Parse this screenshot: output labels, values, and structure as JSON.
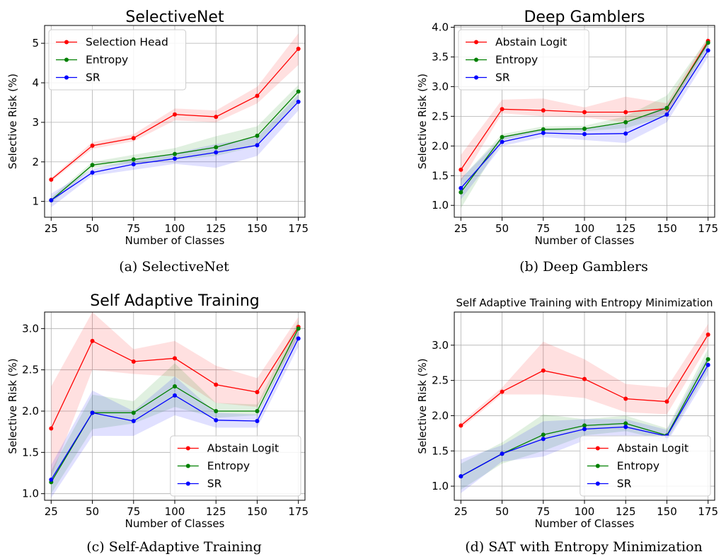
{
  "colors": {
    "red": "#ff0000",
    "green": "#008000",
    "blue": "#0000ff"
  },
  "chart_data": [
    {
      "type": "line",
      "title": "SelectiveNet",
      "caption": "(a) SelectiveNet",
      "xlabel": "Number of Classes",
      "ylabel": "Selective Risk (%)",
      "x": [
        25,
        50,
        75,
        100,
        125,
        150,
        175
      ],
      "xticks": [
        "25",
        "50",
        "75",
        "100",
        "125",
        "150",
        "175"
      ],
      "ylim": [
        0.6,
        5.45
      ],
      "yticks": [
        1,
        2,
        3,
        4,
        5
      ],
      "ytick_labels": [
        "1",
        "2",
        "3",
        "4",
        "5"
      ],
      "grid": true,
      "legend": "upper-left",
      "series": [
        {
          "name": "Selection Head",
          "color": "#ff0000",
          "values": [
            1.55,
            2.41,
            2.6,
            3.2,
            3.14,
            3.67,
            4.86
          ],
          "band_low": [
            1.5,
            2.33,
            2.52,
            3.05,
            3.0,
            3.48,
            4.45
          ],
          "band_high": [
            1.6,
            2.5,
            2.7,
            3.35,
            3.3,
            3.9,
            5.25
          ]
        },
        {
          "name": "Entropy",
          "color": "#008000",
          "values": [
            1.03,
            1.92,
            2.06,
            2.2,
            2.37,
            2.66,
            3.78
          ],
          "band_low": [
            0.95,
            1.85,
            1.96,
            2.05,
            2.15,
            2.4,
            3.55
          ],
          "band_high": [
            1.1,
            2.0,
            2.18,
            2.35,
            2.65,
            2.9,
            3.95
          ]
        },
        {
          "name": "SR",
          "color": "#0000ff",
          "values": [
            1.03,
            1.73,
            1.94,
            2.08,
            2.24,
            2.42,
            3.52
          ],
          "band_low": [
            0.85,
            1.65,
            1.8,
            1.95,
            1.85,
            2.15,
            3.3
          ],
          "band_high": [
            1.2,
            1.82,
            2.05,
            2.22,
            2.45,
            2.62,
            3.7
          ]
        }
      ]
    },
    {
      "type": "line",
      "title": "Deep Gamblers",
      "caption": "(b) Deep Gamblers",
      "xlabel": "Number of Classes",
      "ylabel": "Selective Risk (%)",
      "x": [
        25,
        50,
        75,
        100,
        125,
        150,
        175
      ],
      "xticks": [
        "25",
        "50",
        "75",
        "100",
        "125",
        "150",
        "175"
      ],
      "ylim": [
        0.8,
        4.03
      ],
      "yticks": [
        1.0,
        1.5,
        2.0,
        2.5,
        3.0,
        3.5,
        4.0
      ],
      "ytick_labels": [
        "1.0",
        "1.5",
        "2.0",
        "2.5",
        "3.0",
        "3.5",
        "4.0"
      ],
      "grid": true,
      "legend": "upper-left",
      "series": [
        {
          "name": "Abstain Logit",
          "color": "#ff0000",
          "values": [
            1.6,
            2.62,
            2.6,
            2.57,
            2.57,
            2.63,
            3.77
          ],
          "band_low": [
            1.4,
            2.55,
            2.5,
            2.48,
            2.4,
            2.55,
            3.7
          ],
          "band_high": [
            1.85,
            2.78,
            2.8,
            2.65,
            2.83,
            2.72,
            3.84
          ]
        },
        {
          "name": "Entropy",
          "color": "#008000",
          "values": [
            1.22,
            2.15,
            2.28,
            2.29,
            2.4,
            2.64,
            3.74
          ],
          "band_low": [
            0.95,
            2.1,
            2.25,
            2.25,
            2.3,
            2.5,
            3.65
          ],
          "band_high": [
            1.45,
            2.2,
            2.33,
            2.34,
            2.5,
            2.85,
            3.82
          ]
        },
        {
          "name": "SR",
          "color": "#0000ff",
          "values": [
            1.29,
            2.07,
            2.22,
            2.2,
            2.21,
            2.53,
            3.61
          ],
          "band_low": [
            1.1,
            2.0,
            2.15,
            2.1,
            2.05,
            2.4,
            3.5
          ],
          "band_high": [
            1.45,
            2.15,
            2.28,
            2.3,
            2.38,
            2.68,
            3.72
          ]
        }
      ]
    },
    {
      "type": "line",
      "title": "Self Adaptive Training",
      "caption": "(c) Self-Adaptive Training",
      "xlabel": "Number of Classes",
      "ylabel": "Selective Risk (%)",
      "x": [
        25,
        50,
        75,
        100,
        125,
        150,
        175
      ],
      "xticks": [
        "25",
        "50",
        "75",
        "100",
        "125",
        "150",
        "175"
      ],
      "ylim": [
        0.92,
        3.2
      ],
      "yticks": [
        1.0,
        1.5,
        2.0,
        2.5,
        3.0
      ],
      "ytick_labels": [
        "1.0",
        "1.5",
        "2.0",
        "2.5",
        "3.0"
      ],
      "grid": true,
      "legend": "lower-right",
      "series": [
        {
          "name": "Abstain Logit",
          "color": "#ff0000",
          "values": [
            1.79,
            2.85,
            2.6,
            2.64,
            2.32,
            2.23,
            3.02
          ],
          "band_low": [
            1.2,
            2.5,
            2.45,
            2.42,
            2.1,
            2.05,
            2.9
          ],
          "band_high": [
            2.3,
            3.2,
            2.75,
            2.85,
            2.55,
            2.4,
            3.14
          ]
        },
        {
          "name": "Entropy",
          "color": "#008000",
          "values": [
            1.14,
            1.98,
            1.98,
            2.3,
            2.0,
            2.0,
            3.0
          ],
          "band_low": [
            1.0,
            1.78,
            1.85,
            2.05,
            1.92,
            1.95,
            2.9
          ],
          "band_high": [
            1.28,
            2.2,
            2.12,
            2.58,
            2.1,
            2.08,
            3.1
          ]
        },
        {
          "name": "SR",
          "color": "#0000ff",
          "values": [
            1.17,
            1.98,
            1.88,
            2.19,
            1.89,
            1.88,
            2.88
          ],
          "band_low": [
            0.95,
            1.7,
            1.7,
            1.95,
            1.8,
            1.8,
            2.78
          ],
          "band_high": [
            1.35,
            2.25,
            2.0,
            2.42,
            1.98,
            1.96,
            2.98
          ]
        }
      ]
    },
    {
      "type": "line",
      "title": "Self Adaptive Training with Entropy Minimization",
      "caption": "(d) SAT with Entropy Minimization",
      "xlabel": "Number of Classes",
      "ylabel": "Selective Risk (%)",
      "x": [
        25,
        50,
        75,
        100,
        125,
        150,
        175
      ],
      "xticks": [
        "25",
        "50",
        "75",
        "100",
        "125",
        "150",
        "175"
      ],
      "ylim": [
        0.8,
        3.47
      ],
      "yticks": [
        1.0,
        1.5,
        2.0,
        2.5,
        3.0
      ],
      "ytick_labels": [
        "1.0",
        "1.5",
        "2.0",
        "2.5",
        "3.0"
      ],
      "grid": true,
      "legend": "lower-right",
      "series": [
        {
          "name": "Abstain Logit",
          "color": "#ff0000",
          "values": [
            1.86,
            2.34,
            2.64,
            2.52,
            2.24,
            2.2,
            3.15
          ],
          "band_low": [
            1.82,
            2.3,
            2.3,
            2.25,
            2.05,
            2.02,
            3.0
          ],
          "band_high": [
            1.9,
            2.4,
            3.05,
            2.8,
            2.45,
            2.4,
            3.3
          ]
        },
        {
          "name": "Entropy",
          "color": "#008000",
          "values": [
            1.14,
            1.46,
            1.73,
            1.86,
            1.89,
            1.72,
            2.8
          ],
          "band_low": [
            0.95,
            1.32,
            1.5,
            1.72,
            1.78,
            1.65,
            2.65
          ],
          "band_high": [
            1.32,
            1.62,
            2.02,
            1.95,
            2.0,
            1.82,
            2.95
          ]
        },
        {
          "name": "SR",
          "color": "#0000ff",
          "values": [
            1.14,
            1.46,
            1.67,
            1.81,
            1.84,
            1.71,
            2.72
          ],
          "band_low": [
            0.9,
            1.35,
            1.42,
            1.65,
            1.72,
            1.62,
            2.58
          ],
          "band_high": [
            1.38,
            1.58,
            1.92,
            1.95,
            1.95,
            1.8,
            2.86
          ]
        }
      ]
    }
  ]
}
